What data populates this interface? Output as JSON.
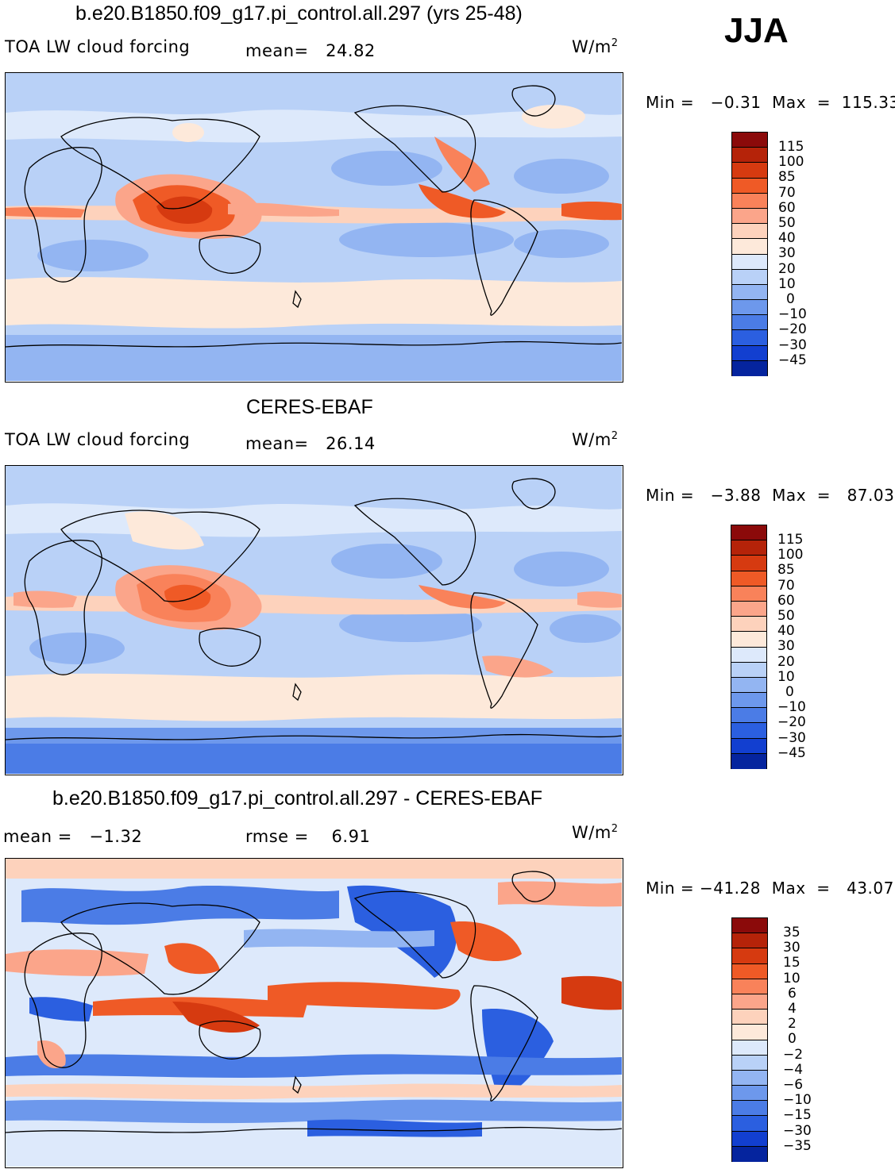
{
  "season": "JJA",
  "panels": [
    {
      "title": "b.e20.B1850.f09_g17.pi_control.all.297 (yrs 25-48)",
      "left_label": "TOA LW cloud forcing",
      "center_label": "mean=   24.82",
      "units": "W/m",
      "units_exp": "2",
      "minmax": "Min =   −0.31  Max  =  115.33",
      "levels": [
        "115",
        "100",
        "85",
        "70",
        "60",
        "50",
        "40",
        "30",
        "20",
        "10",
        "0",
        "−10",
        "−20",
        "−30",
        "−45"
      ],
      "colors": [
        "#8b0a0a",
        "#b52309",
        "#d63a10",
        "#ef5a26",
        "#f9825a",
        "#fba58a",
        "#fdd2bc",
        "#fde9da",
        "#dde9fb",
        "#b9d1f7",
        "#93b5f2",
        "#6d98ec",
        "#4b7ce6",
        "#2b5fe0",
        "#123fd0",
        "#05249e"
      ]
    },
    {
      "title": "CERES-EBAF",
      "left_label": "TOA LW cloud forcing",
      "center_label": "mean=   26.14",
      "units": "W/m",
      "units_exp": "2",
      "minmax": "Min =   −3.88  Max  =   87.03",
      "levels": [
        "115",
        "100",
        "85",
        "70",
        "60",
        "50",
        "40",
        "30",
        "20",
        "10",
        "0",
        "−10",
        "−20",
        "−30",
        "−45"
      ],
      "colors": [
        "#8b0a0a",
        "#b52309",
        "#d63a10",
        "#ef5a26",
        "#f9825a",
        "#fba58a",
        "#fdd2bc",
        "#fde9da",
        "#dde9fb",
        "#b9d1f7",
        "#93b5f2",
        "#6d98ec",
        "#4b7ce6",
        "#2b5fe0",
        "#123fd0",
        "#05249e"
      ]
    },
    {
      "title": "b.e20.B1850.f09_g17.pi_control.all.297 - CERES-EBAF",
      "left_label": "mean =   −1.32",
      "center_label": "rmse =    6.91",
      "units": "W/m",
      "units_exp": "2",
      "minmax": "Min = −41.28  Max  =   43.07",
      "levels": [
        "35",
        "30",
        "15",
        "10",
        "6",
        "4",
        "2",
        "0",
        "−2",
        "−4",
        "−6",
        "−10",
        "−15",
        "−30",
        "−35"
      ],
      "colors": [
        "#8b0a0a",
        "#b52309",
        "#d63a10",
        "#ef5a26",
        "#f9825a",
        "#fba58a",
        "#fdd2bc",
        "#fde9da",
        "#dde9fb",
        "#b9d1f7",
        "#93b5f2",
        "#6d98ec",
        "#4b7ce6",
        "#2b5fe0",
        "#123fd0",
        "#05249e"
      ]
    }
  ]
}
